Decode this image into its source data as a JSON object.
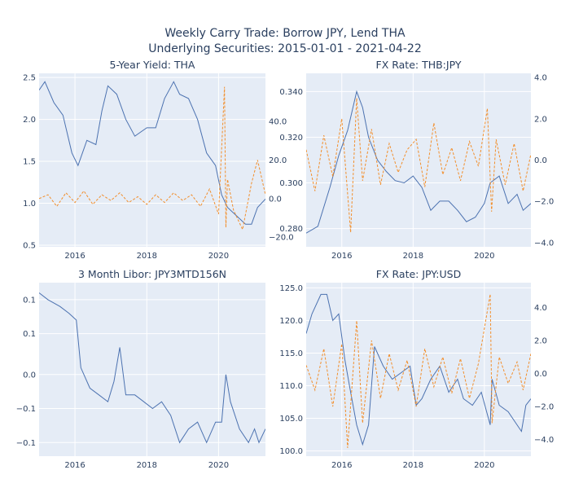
{
  "title": {
    "line1": "Weekly Carry Trade: Borrow JPY, Lend THA",
    "line2": "Underlying Securities: 2015-01-01 - 2021-04-22"
  },
  "colors": {
    "primary": "#4c72b0",
    "secondary": "#f28e2b",
    "plot_bg": "#e5ecf6",
    "text": "#2a3f5f"
  },
  "chart_data": [
    {
      "id": "yield",
      "type": "line",
      "title": "5-Year Yield: THA",
      "x_ticks": [
        "2016",
        "2018",
        "2020"
      ],
      "xlim": [
        "2015-01-01",
        "2021-04-22"
      ],
      "y_ticks": [
        "0.5",
        "1.0",
        "1.5",
        "2.0",
        "2.5"
      ],
      "ylim": [
        0.48,
        2.55
      ],
      "y2_ticks": [
        "−20.0",
        "0.0",
        "20.0",
        "40.0"
      ],
      "y2lim": [
        -25,
        65
      ],
      "series": [
        {
          "axis": "y",
          "style": "solid",
          "points": [
            [
              "2015-01-01",
              2.35
            ],
            [
              "2015-03-01",
              2.45
            ],
            [
              "2015-06-01",
              2.2
            ],
            [
              "2015-09-01",
              2.05
            ],
            [
              "2015-12-01",
              1.6
            ],
            [
              "2016-02-01",
              1.45
            ],
            [
              "2016-05-01",
              1.75
            ],
            [
              "2016-08-01",
              1.7
            ],
            [
              "2016-10-01",
              2.1
            ],
            [
              "2016-12-01",
              2.4
            ],
            [
              "2017-03-01",
              2.3
            ],
            [
              "2017-06-01",
              2.0
            ],
            [
              "2017-09-01",
              1.8
            ],
            [
              "2017-11-01",
              1.85
            ],
            [
              "2018-01-01",
              1.9
            ],
            [
              "2018-04-01",
              1.9
            ],
            [
              "2018-07-01",
              2.25
            ],
            [
              "2018-10-01",
              2.45
            ],
            [
              "2018-12-01",
              2.3
            ],
            [
              "2019-03-01",
              2.25
            ],
            [
              "2019-06-01",
              2.0
            ],
            [
              "2019-09-01",
              1.6
            ],
            [
              "2019-12-01",
              1.45
            ],
            [
              "2020-02-01",
              1.1
            ],
            [
              "2020-04-01",
              0.95
            ],
            [
              "2020-07-01",
              0.85
            ],
            [
              "2020-10-01",
              0.75
            ],
            [
              "2020-12-01",
              0.75
            ],
            [
              "2021-02-01",
              0.95
            ],
            [
              "2021-04-22",
              1.05
            ]
          ]
        },
        {
          "axis": "y2",
          "style": "dashed",
          "points": [
            [
              "2015-01-01",
              0
            ],
            [
              "2015-04-01",
              2
            ],
            [
              "2015-07-01",
              -4
            ],
            [
              "2015-10-01",
              3
            ],
            [
              "2016-01-01",
              -2
            ],
            [
              "2016-04-01",
              4
            ],
            [
              "2016-07-01",
              -3
            ],
            [
              "2016-10-01",
              2
            ],
            [
              "2017-01-01",
              -1
            ],
            [
              "2017-04-01",
              3
            ],
            [
              "2017-07-01",
              -2
            ],
            [
              "2017-10-01",
              1
            ],
            [
              "2018-01-01",
              -3
            ],
            [
              "2018-04-01",
              2
            ],
            [
              "2018-07-01",
              -2
            ],
            [
              "2018-10-01",
              3
            ],
            [
              "2019-01-01",
              -1
            ],
            [
              "2019-04-01",
              2
            ],
            [
              "2019-07-01",
              -4
            ],
            [
              "2019-10-01",
              5
            ],
            [
              "2020-01-01",
              -8
            ],
            [
              "2020-03-01",
              58
            ],
            [
              "2020-03-15",
              -15
            ],
            [
              "2020-04-01",
              10
            ],
            [
              "2020-06-01",
              -6
            ],
            [
              "2020-09-01",
              -16
            ],
            [
              "2020-12-01",
              8
            ],
            [
              "2021-02-01",
              20
            ],
            [
              "2021-04-22",
              2
            ]
          ]
        }
      ]
    },
    {
      "id": "thbjpy",
      "type": "line",
      "title": "FX Rate: THB:JPY",
      "x_ticks": [
        "2016",
        "2018",
        "2020"
      ],
      "xlim": [
        "2015-01-01",
        "2021-04-22"
      ],
      "y_ticks": [
        "0.280",
        "0.300",
        "0.320",
        "0.340"
      ],
      "ylim": [
        0.272,
        0.348
      ],
      "y2_ticks": [
        "−4.0",
        "−2.0",
        "0.0",
        "2.0",
        "4.0"
      ],
      "y2lim": [
        -4.2,
        4.2
      ],
      "series": [
        {
          "axis": "y",
          "style": "solid",
          "points": [
            [
              "2015-01-01",
              0.278
            ],
            [
              "2015-05-01",
              0.281
            ],
            [
              "2015-09-01",
              0.298
            ],
            [
              "2015-12-01",
              0.312
            ],
            [
              "2016-03-01",
              0.323
            ],
            [
              "2016-06-01",
              0.34
            ],
            [
              "2016-08-01",
              0.333
            ],
            [
              "2016-10-01",
              0.32
            ],
            [
              "2017-01-01",
              0.31
            ],
            [
              "2017-04-01",
              0.305
            ],
            [
              "2017-07-01",
              0.301
            ],
            [
              "2017-10-01",
              0.3
            ],
            [
              "2018-01-01",
              0.303
            ],
            [
              "2018-04-01",
              0.298
            ],
            [
              "2018-07-01",
              0.288
            ],
            [
              "2018-10-01",
              0.292
            ],
            [
              "2019-01-01",
              0.292
            ],
            [
              "2019-04-01",
              0.288
            ],
            [
              "2019-07-01",
              0.283
            ],
            [
              "2019-10-01",
              0.285
            ],
            [
              "2020-01-01",
              0.291
            ],
            [
              "2020-03-01",
              0.3
            ],
            [
              "2020-06-01",
              0.303
            ],
            [
              "2020-09-01",
              0.291
            ],
            [
              "2020-12-01",
              0.295
            ],
            [
              "2021-02-01",
              0.288
            ],
            [
              "2021-04-22",
              0.291
            ]
          ]
        },
        {
          "axis": "y2",
          "style": "dashed",
          "points": [
            [
              "2015-01-01",
              0.5
            ],
            [
              "2015-04-01",
              -1.5
            ],
            [
              "2015-07-01",
              1.2
            ],
            [
              "2015-10-01",
              -0.8
            ],
            [
              "2016-01-01",
              2.0
            ],
            [
              "2016-04-01",
              -3.5
            ],
            [
              "2016-06-01",
              3.0
            ],
            [
              "2016-08-01",
              -1.0
            ],
            [
              "2016-11-01",
              1.5
            ],
            [
              "2017-02-01",
              -1.2
            ],
            [
              "2017-05-01",
              0.8
            ],
            [
              "2017-08-01",
              -0.6
            ],
            [
              "2017-11-01",
              0.5
            ],
            [
              "2018-02-01",
              1.0
            ],
            [
              "2018-05-01",
              -1.3
            ],
            [
              "2018-08-01",
              1.8
            ],
            [
              "2018-11-01",
              -0.7
            ],
            [
              "2019-02-01",
              0.6
            ],
            [
              "2019-05-01",
              -1.0
            ],
            [
              "2019-08-01",
              0.9
            ],
            [
              "2019-11-01",
              -0.3
            ],
            [
              "2020-02-01",
              2.5
            ],
            [
              "2020-03-15",
              -2.5
            ],
            [
              "2020-05-01",
              1.0
            ],
            [
              "2020-08-01",
              -1.2
            ],
            [
              "2020-11-01",
              0.8
            ],
            [
              "2021-02-01",
              -1.5
            ],
            [
              "2021-04-22",
              0.3
            ]
          ]
        }
      ]
    },
    {
      "id": "libor",
      "type": "line",
      "title": "3 Month Libor: JPY3MTD156N",
      "x_ticks": [
        "2016",
        "2018",
        "2020"
      ],
      "xlim": [
        "2015-01-01",
        "2021-04-22"
      ],
      "y_ticks": [
        "0.1",
        "0.1",
        "0.0",
        "−0.1",
        "−0.1"
      ],
      "ylim": [
        -0.12,
        0.135
      ],
      "series": [
        {
          "axis": "y",
          "style": "solid",
          "points": [
            [
              "2015-01-01",
              0.12
            ],
            [
              "2015-04-01",
              0.11
            ],
            [
              "2015-08-01",
              0.1
            ],
            [
              "2015-11-01",
              0.09
            ],
            [
              "2016-01-15",
              0.08
            ],
            [
              "2016-03-01",
              0.01
            ],
            [
              "2016-06-01",
              -0.02
            ],
            [
              "2016-09-01",
              -0.03
            ],
            [
              "2016-12-01",
              -0.04
            ],
            [
              "2017-02-01",
              -0.01
            ],
            [
              "2017-04-01",
              0.04
            ],
            [
              "2017-06-01",
              -0.03
            ],
            [
              "2017-09-01",
              -0.03
            ],
            [
              "2017-12-01",
              -0.04
            ],
            [
              "2018-03-01",
              -0.05
            ],
            [
              "2018-06-01",
              -0.04
            ],
            [
              "2018-09-01",
              -0.06
            ],
            [
              "2018-12-01",
              -0.1
            ],
            [
              "2019-03-01",
              -0.08
            ],
            [
              "2019-06-01",
              -0.07
            ],
            [
              "2019-09-01",
              -0.1
            ],
            [
              "2019-12-01",
              -0.07
            ],
            [
              "2020-02-01",
              -0.07
            ],
            [
              "2020-03-15",
              0.0
            ],
            [
              "2020-05-01",
              -0.04
            ],
            [
              "2020-08-01",
              -0.08
            ],
            [
              "2020-11-01",
              -0.1
            ],
            [
              "2021-01-01",
              -0.08
            ],
            [
              "2021-02-15",
              -0.1
            ],
            [
              "2021-04-22",
              -0.08
            ]
          ]
        }
      ]
    },
    {
      "id": "jpyusd",
      "type": "line",
      "title": "FX Rate: JPY:USD",
      "x_ticks": [
        "2016",
        "2018",
        "2020"
      ],
      "xlim": [
        "2015-01-01",
        "2021-04-22"
      ],
      "y_ticks": [
        "100.0",
        "105.0",
        "110.0",
        "115.0",
        "120.0",
        "125.0"
      ],
      "ylim": [
        99.2,
        125.8
      ],
      "y2_ticks": [
        "−4.0",
        "−2.0",
        "0.0",
        "2.0",
        "4.0"
      ],
      "y2lim": [
        -5.0,
        5.5
      ],
      "series": [
        {
          "axis": "y",
          "style": "solid",
          "points": [
            [
              "2015-01-01",
              118
            ],
            [
              "2015-03-01",
              121
            ],
            [
              "2015-06-01",
              124
            ],
            [
              "2015-08-01",
              124
            ],
            [
              "2015-10-01",
              120
            ],
            [
              "2015-12-01",
              121
            ],
            [
              "2016-02-01",
              114
            ],
            [
              "2016-04-01",
              109
            ],
            [
              "2016-06-01",
              104
            ],
            [
              "2016-08-01",
              101
            ],
            [
              "2016-10-01",
              104
            ],
            [
              "2016-12-01",
              116
            ],
            [
              "2017-03-01",
              113
            ],
            [
              "2017-06-01",
              111
            ],
            [
              "2017-09-01",
              112
            ],
            [
              "2017-12-01",
              113
            ],
            [
              "2018-02-01",
              107
            ],
            [
              "2018-04-01",
              108
            ],
            [
              "2018-07-01",
              111
            ],
            [
              "2018-10-01",
              113
            ],
            [
              "2019-01-01",
              109
            ],
            [
              "2019-04-01",
              111
            ],
            [
              "2019-06-01",
              108
            ],
            [
              "2019-09-01",
              107
            ],
            [
              "2019-12-01",
              109
            ],
            [
              "2020-03-01",
              104
            ],
            [
              "2020-03-20",
              111
            ],
            [
              "2020-06-01",
              107
            ],
            [
              "2020-09-01",
              106
            ],
            [
              "2020-12-01",
              104
            ],
            [
              "2021-01-15",
              103
            ],
            [
              "2021-03-01",
              107
            ],
            [
              "2021-04-22",
              108
            ]
          ]
        },
        {
          "axis": "y2",
          "style": "dashed",
          "points": [
            [
              "2015-01-01",
              0.5
            ],
            [
              "2015-04-01",
              -1.0
            ],
            [
              "2015-07-01",
              1.5
            ],
            [
              "2015-10-01",
              -2.0
            ],
            [
              "2016-01-01",
              1.8
            ],
            [
              "2016-03-01",
              -4.5
            ],
            [
              "2016-06-01",
              3.2
            ],
            [
              "2016-08-01",
              -3.0
            ],
            [
              "2016-11-01",
              2.0
            ],
            [
              "2017-02-01",
              -1.5
            ],
            [
              "2017-05-01",
              1.2
            ],
            [
              "2017-08-01",
              -1.0
            ],
            [
              "2017-11-01",
              0.8
            ],
            [
              "2018-02-01",
              -2.0
            ],
            [
              "2018-05-01",
              1.5
            ],
            [
              "2018-08-01",
              -0.8
            ],
            [
              "2018-11-01",
              1.0
            ],
            [
              "2019-02-01",
              -1.2
            ],
            [
              "2019-05-01",
              0.9
            ],
            [
              "2019-08-01",
              -1.5
            ],
            [
              "2019-11-01",
              0.6
            ],
            [
              "2020-03-01",
              4.8
            ],
            [
              "2020-03-20",
              -3.0
            ],
            [
              "2020-06-01",
              1.0
            ],
            [
              "2020-09-01",
              -0.6
            ],
            [
              "2020-12-01",
              0.7
            ],
            [
              "2021-02-01",
              -1.0
            ],
            [
              "2021-04-22",
              1.2
            ]
          ]
        }
      ]
    }
  ]
}
